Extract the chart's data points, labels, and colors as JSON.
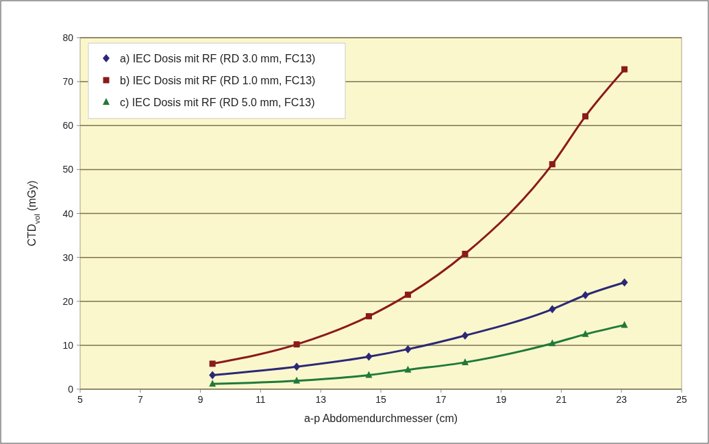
{
  "chart_data": {
    "type": "line",
    "xlabel": "a-p Abdomendurchmesser (cm)",
    "ylabel": "CTD$_{vol}$ (mGy)",
    "x": [
      9.4,
      12.2,
      14.6,
      15.9,
      17.8,
      20.7,
      21.8,
      23.1
    ],
    "series": [
      {
        "name": "a) IEC Dosis mit RF (RD 3.0 mm, FC13)",
        "color": "#2b2878",
        "marker": "diamond",
        "values": [
          3.2,
          5.1,
          7.4,
          9.1,
          12.2,
          18.2,
          21.4,
          24.3
        ]
      },
      {
        "name": "b) IEC Dosis mit RF (RD 1.0 mm, FC13)",
        "color": "#8b1a1a",
        "marker": "square",
        "values": [
          5.8,
          10.2,
          16.6,
          21.5,
          30.8,
          51.2,
          62.1,
          72.8
        ]
      },
      {
        "name": "c) IEC Dosis mit RF (RD 5.0 mm, FC13)",
        "color": "#1f7a3a",
        "marker": "triangle",
        "values": [
          1.2,
          1.9,
          3.2,
          4.4,
          6.1,
          10.4,
          12.5,
          14.6
        ]
      }
    ],
    "xlim": [
      5,
      25
    ],
    "xticks": [
      5,
      7,
      9,
      11,
      13,
      15,
      17,
      19,
      21,
      23,
      25
    ],
    "ylim": [
      0,
      80
    ],
    "yticks": [
      0,
      10,
      20,
      30,
      40,
      50,
      60,
      70,
      80
    ],
    "grid": "y",
    "legend": "top left",
    "line_style": "solid"
  }
}
